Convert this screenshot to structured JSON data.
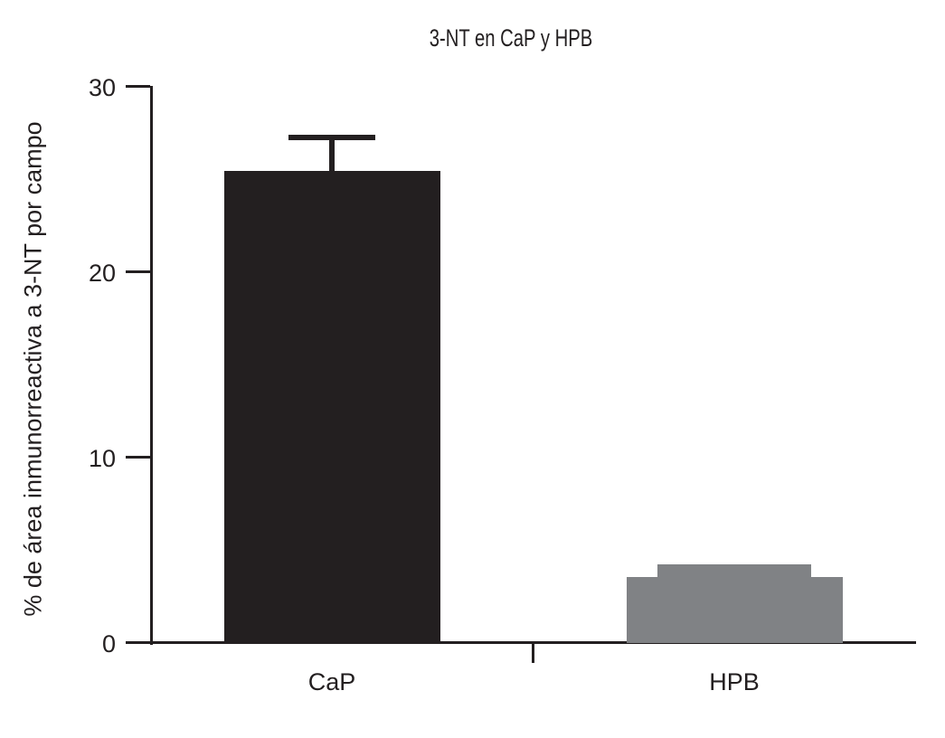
{
  "chart_data": {
    "type": "bar",
    "title": "3-NT en CaP y HPB",
    "xlabel": "",
    "ylabel": "% de área inmunorreactiva a 3-NT por campo",
    "categories": [
      "CaP",
      "HPB"
    ],
    "values": [
      25.4,
      3.5
    ],
    "errors": [
      1.8,
      0.7
    ],
    "bar_colors": [
      "#231f20",
      "#808285"
    ],
    "error_styles": [
      {
        "color": "#231f20",
        "cap_width_ratio": 0.4,
        "stem": true
      },
      {
        "color": "#808285",
        "cap_width_ratio": 0.71,
        "stem": false
      }
    ],
    "yticks": [
      0,
      10,
      20,
      30
    ],
    "ylim": [
      0,
      30
    ],
    "grid": false,
    "legend_position": "none",
    "axis_color": "#231f20",
    "text_color": "#231f20",
    "background": "#ffffff"
  }
}
